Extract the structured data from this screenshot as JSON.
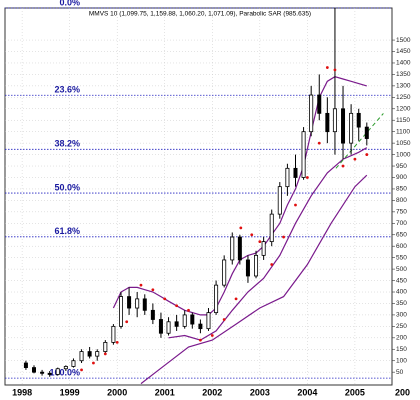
{
  "chart_data": {
    "type": "candlestick",
    "subtitle": "MMVS 10 (1,099.75, 1,159.88, 1,060.20, 1,071.09), Parabolic SAR (985.635)",
    "x": [
      1998.08,
      1998.25,
      1998.42,
      1998.58,
      1998.75,
      1998.92,
      1999.08,
      1999.25,
      1999.42,
      1999.58,
      1999.75,
      1999.92,
      2000.08,
      2000.25,
      2000.42,
      2000.58,
      2000.75,
      2000.92,
      2001.08,
      2001.25,
      2001.42,
      2001.58,
      2001.75,
      2001.92,
      2002.08,
      2002.25,
      2002.42,
      2002.58,
      2002.75,
      2002.92,
      2003.08,
      2003.25,
      2003.42,
      2003.58,
      2003.75,
      2003.92,
      2004.08,
      2004.25,
      2004.42,
      2004.58,
      2004.75,
      2004.92,
      2005.08,
      2005.25
    ],
    "open": [
      90,
      70,
      50,
      45,
      40,
      65,
      75,
      100,
      140,
      120,
      140,
      180,
      250,
      380,
      330,
      370,
      320,
      280,
      220,
      270,
      250,
      300,
      260,
      240,
      310,
      430,
      540,
      640,
      540,
      470,
      560,
      620,
      740,
      860,
      940,
      900,
      1100,
      1260,
      1180,
      1100,
      1200,
      1050,
      1180,
      1120
    ],
    "high": [
      100,
      80,
      60,
      55,
      70,
      80,
      110,
      150,
      160,
      150,
      190,
      260,
      400,
      420,
      400,
      390,
      350,
      310,
      290,
      300,
      320,
      310,
      280,
      330,
      450,
      560,
      660,
      650,
      560,
      580,
      640,
      760,
      880,
      960,
      1000,
      1120,
      1300,
      1350,
      1250,
      1640,
      1300,
      1220,
      1200,
      1140
    ],
    "low": [
      60,
      45,
      35,
      30,
      35,
      55,
      70,
      90,
      110,
      100,
      130,
      170,
      240,
      300,
      290,
      300,
      260,
      200,
      210,
      230,
      240,
      240,
      220,
      230,
      300,
      420,
      520,
      520,
      440,
      460,
      540,
      600,
      720,
      820,
      860,
      890,
      1080,
      1150,
      1050,
      1000,
      980,
      1000,
      1060,
      1040
    ],
    "close": [
      70,
      50,
      45,
      40,
      65,
      75,
      100,
      140,
      120,
      140,
      180,
      250,
      380,
      330,
      370,
      320,
      280,
      220,
      270,
      250,
      300,
      260,
      240,
      310,
      430,
      540,
      640,
      540,
      470,
      560,
      620,
      740,
      860,
      940,
      900,
      1100,
      1260,
      1180,
      1100,
      1200,
      1050,
      1180,
      1120,
      1070
    ],
    "lines": [
      {
        "color": "#7a1a8c",
        "x": [
          1999.92,
          2000.08,
          2000.25,
          2000.42,
          2000.58,
          2000.75,
          2000.92,
          2001.08,
          2001.25,
          2001.42,
          2001.58,
          2001.75,
          2001.92,
          2002.08,
          2002.25,
          2002.42,
          2002.58,
          2002.75,
          2002.92,
          2003.08,
          2003.25,
          2003.42,
          2003.58,
          2003.75,
          2003.92,
          2004.08,
          2004.25,
          2004.42,
          2004.58,
          2004.75,
          2004.92,
          2005.08,
          2005.25
        ],
        "values": [
          330,
          400,
          420,
          420,
          410,
          400,
          380,
          360,
          340,
          320,
          310,
          300,
          300,
          330,
          400,
          480,
          540,
          560,
          570,
          600,
          650,
          700,
          780,
          850,
          950,
          1100,
          1250,
          1320,
          1340,
          1330,
          1320,
          1310,
          1300
        ]
      },
      {
        "color": "#7a1a8c",
        "x": [
          2001.08,
          2001.42,
          2001.75,
          2002.08,
          2002.42,
          2002.75,
          2003.08,
          2003.42,
          2003.75,
          2004.08,
          2004.42,
          2004.75,
          2005.08,
          2005.25
        ],
        "values": [
          200,
          210,
          190,
          230,
          320,
          400,
          460,
          560,
          700,
          820,
          920,
          980,
          1010,
          1030
        ]
      },
      {
        "color": "#7a1a8c",
        "x": [
          2000.5,
          2001,
          2001.5,
          2002,
          2002.5,
          2003,
          2003.5,
          2004,
          2004.5,
          2005,
          2005.25
        ],
        "values": [
          0,
          80,
          160,
          190,
          260,
          330,
          380,
          520,
          700,
          860,
          910
        ]
      }
    ],
    "sar": {
      "color": "#e01010",
      "x": [
        1999.25,
        1999.5,
        1999.75,
        2000.0,
        2000.2,
        2000.5,
        2000.75,
        2001.0,
        2001.25,
        2001.5,
        2001.75,
        2002.0,
        2002.25,
        2002.5,
        2002.6,
        2002.83,
        2003.0,
        2003.25,
        2003.5,
        2003.75,
        2004.0,
        2004.25,
        2004.42,
        2004.58,
        2004.75,
        2005.0,
        2005.25
      ],
      "values": [
        60,
        90,
        130,
        180,
        270,
        430,
        410,
        370,
        340,
        320,
        190,
        210,
        280,
        370,
        680,
        650,
        620,
        520,
        640,
        780,
        900,
        1050,
        1380,
        1370,
        950,
        980,
        1000
      ]
    },
    "trend": {
      "color": "#2a9a2a",
      "x": [
        2004.6,
        2005.6
      ],
      "values": [
        940,
        1180
      ]
    },
    "levels": [
      {
        "value": 1640,
        "label": "0.0%"
      },
      {
        "value": 1259,
        "label": "23.6%"
      },
      {
        "value": 1023,
        "label": "38.2%"
      },
      {
        "value": 832,
        "label": "50.0%"
      },
      {
        "value": 641,
        "label": "61.8%"
      },
      {
        "value": 24,
        "label": "100.0%"
      }
    ],
    "xlim": [
      1997.64,
      2005.78
    ],
    "ylim": [
      -6,
      1640
    ],
    "xticks": [
      1998,
      1999,
      2000,
      2001,
      2002,
      2003,
      2004,
      2005,
      {
        "value": 2006,
        "label": "200"
      }
    ],
    "yticks": [
      50,
      100,
      150,
      200,
      250,
      300,
      350,
      400,
      450,
      500,
      550,
      600,
      650,
      700,
      750,
      800,
      850,
      900,
      950,
      1000,
      1050,
      1100,
      1150,
      1200,
      1250,
      1300,
      1350,
      1400,
      1450,
      1500
    ],
    "grid": true
  }
}
